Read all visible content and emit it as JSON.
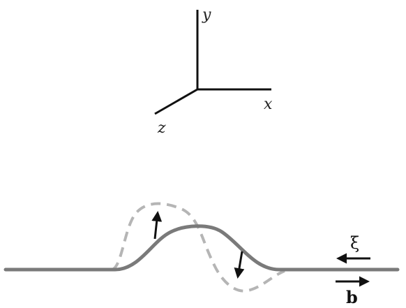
{
  "axes": {
    "x_label": "x",
    "y_label": "y",
    "z_label": "z"
  },
  "labels": {
    "xi": "ξ",
    "b": "b"
  },
  "colors": {
    "axis": "#111111",
    "curve_solid": "#7a7a7a",
    "curve_dashed": "#b5b5b5",
    "arrow": "#111111"
  }
}
